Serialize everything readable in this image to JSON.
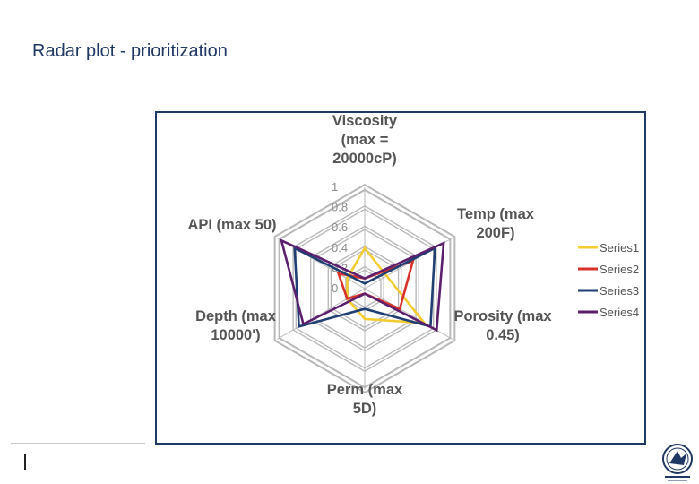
{
  "slide": {
    "title": "Radar plot - prioritization"
  },
  "chart_data": {
    "type": "radar",
    "axes": [
      {
        "label_lines": [
          "Viscosity",
          "(max =",
          "20000cP)"
        ]
      },
      {
        "label_lines": [
          "Temp (max",
          "200F)"
        ]
      },
      {
        "label_lines": [
          "Porosity (max",
          "0.45)"
        ]
      },
      {
        "label_lines": [
          "Perm (max",
          "5D)"
        ]
      },
      {
        "label_lines": [
          "Depth (max",
          "10000')"
        ]
      },
      {
        "label_lines": [
          "API (max 50)"
        ]
      }
    ],
    "rlim": [
      0,
      1
    ],
    "tick_labels": [
      "0",
      "0.2",
      "0.4",
      "0.6",
      "0.8",
      "1"
    ],
    "grid": true,
    "legend_position": "right",
    "series": [
      {
        "name": "Series1",
        "color": "#f2cc30",
        "values": [
          0.4,
          0.25,
          0.68,
          0.3,
          0.2,
          0.2
        ]
      },
      {
        "name": "Series2",
        "color": "#d8322a",
        "values": [
          0.1,
          0.55,
          0.4,
          0.05,
          0.2,
          0.3
        ]
      },
      {
        "name": "Series3",
        "color": "#1f3f73",
        "values": [
          0.05,
          0.8,
          0.75,
          0.2,
          0.75,
          0.8
        ]
      },
      {
        "name": "Series4",
        "color": "#5b1f6e",
        "values": [
          0.1,
          0.9,
          0.82,
          0.05,
          0.7,
          0.95
        ]
      }
    ]
  }
}
